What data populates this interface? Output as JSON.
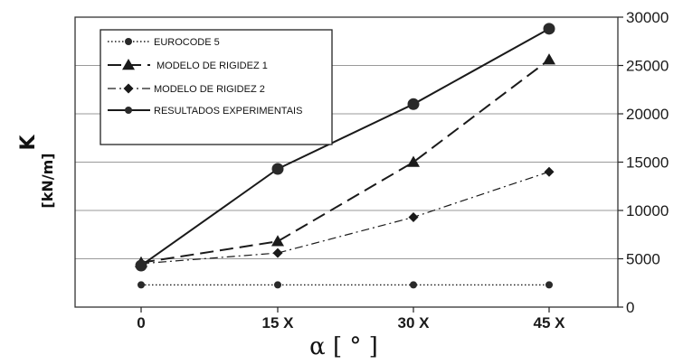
{
  "chart_data": {
    "type": "line",
    "xlabel": "α [ ° ]",
    "ylabel": "K",
    "ylabel_unit": "[kN/m]",
    "categories": [
      "0",
      "15 X",
      "30 X",
      "45 X"
    ],
    "ylim": [
      0,
      30000
    ],
    "yticks": [
      "0",
      "5000",
      "10000",
      "15000",
      "20000",
      "25000",
      "30000"
    ],
    "y_axis_side": "right",
    "grid": true,
    "legend_position": "top-left",
    "series": [
      {
        "name": "EUROCODE 5",
        "values": [
          2300,
          2300,
          2300,
          2300
        ],
        "marker": "circle",
        "style": "dotted"
      },
      {
        "name": "MODELO DE RIGIDEZ 1",
        "values": [
          4600,
          6800,
          15000,
          25600
        ],
        "marker": "triangle",
        "style": "dashed"
      },
      {
        "name": "MODELO DE RIGIDEZ 2",
        "values": [
          4500,
          5600,
          9300,
          14000
        ],
        "marker": "diamond",
        "style": "dash-dot"
      },
      {
        "name": "RESULTADOS EXPERIMENTAIS",
        "values": [
          4300,
          14300,
          21000,
          28800
        ],
        "marker": "circle-large",
        "style": "solid"
      }
    ]
  }
}
